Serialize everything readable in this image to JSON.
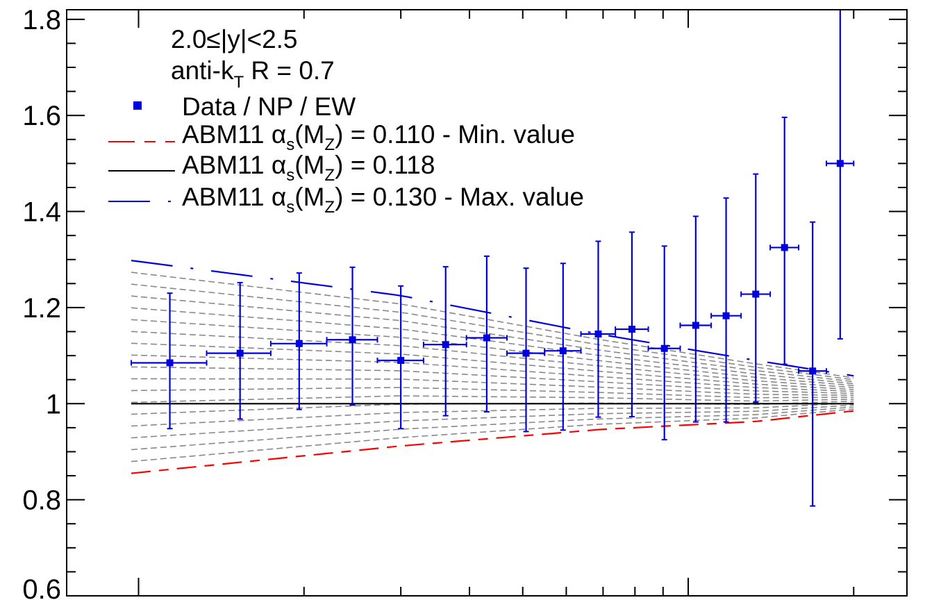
{
  "chart_data": {
    "type": "scatter",
    "title": "",
    "xlabel": "",
    "ylabel": "",
    "xscale": "log",
    "xlim": [
      74,
      2500
    ],
    "ylim": [
      0.6,
      1.82
    ],
    "yticks": [
      0.6,
      0.8,
      1,
      1.2,
      1.4,
      1.6,
      1.8
    ],
    "ytick_labels": [
      "0.6",
      "0.8",
      "1",
      "1.2",
      "1.4",
      "1.6",
      "1.8"
    ],
    "grid": false,
    "annotations": [
      "2.0≤|y|<2.5",
      "anti-k",
      "T",
      " R = 0.7"
    ],
    "legend": {
      "placement": "top-left",
      "entries": [
        {
          "label": "Data / NP / EW",
          "color": "#0000dd",
          "style": "marker"
        },
        {
          "label": "ABM11 ",
          "alpha": "α",
          "sub": "s",
          "paren": "(M",
          "sub2": "Z",
          "tail": ") = 0.110 - Min. value",
          "color": "#ff0000",
          "style": "dashed"
        },
        {
          "label": "ABM11 ",
          "alpha": "α",
          "sub": "s",
          "paren": "(M",
          "sub2": "Z",
          "tail": ") = 0.118",
          "color": "#000000",
          "style": "solid"
        },
        {
          "label": "ABM11 ",
          "alpha": "α",
          "sub": "s",
          "paren": "(M",
          "sub2": "Z",
          "tail": ") = 0.130 - Max. value",
          "color": "#0000dd",
          "style": "longdash"
        }
      ]
    },
    "series": [
      {
        "name": "Data / NP / EW",
        "color": "#0000dd",
        "points": [
          {
            "x": 114,
            "xlo": 97,
            "xhi": 133,
            "y": 1.085,
            "ylo": 0.948,
            "yhi": 1.23
          },
          {
            "x": 153,
            "xlo": 133,
            "xhi": 174,
            "y": 1.105,
            "ylo": 0.968,
            "yhi": 1.252
          },
          {
            "x": 196,
            "xlo": 174,
            "xhi": 220,
            "y": 1.125,
            "ylo": 0.988,
            "yhi": 1.272
          },
          {
            "x": 245,
            "xlo": 220,
            "xhi": 272,
            "y": 1.133,
            "ylo": 0.997,
            "yhi": 1.284
          },
          {
            "x": 300,
            "xlo": 272,
            "xhi": 330,
            "y": 1.09,
            "ylo": 0.948,
            "yhi": 1.245
          },
          {
            "x": 362,
            "xlo": 330,
            "xhi": 395,
            "y": 1.123,
            "ylo": 0.975,
            "yhi": 1.285
          },
          {
            "x": 430,
            "xlo": 395,
            "xhi": 468,
            "y": 1.137,
            "ylo": 0.983,
            "yhi": 1.307
          },
          {
            "x": 507,
            "xlo": 468,
            "xhi": 548,
            "y": 1.105,
            "ylo": 0.942,
            "yhi": 1.282
          },
          {
            "x": 592,
            "xlo": 548,
            "xhi": 638,
            "y": 1.11,
            "ylo": 0.945,
            "yhi": 1.292
          },
          {
            "x": 686,
            "xlo": 638,
            "xhi": 737,
            "y": 1.145,
            "ylo": 0.972,
            "yhi": 1.338
          },
          {
            "x": 790,
            "xlo": 737,
            "xhi": 846,
            "y": 1.155,
            "ylo": 0.973,
            "yhi": 1.357
          },
          {
            "x": 905,
            "xlo": 846,
            "xhi": 967,
            "y": 1.115,
            "ylo": 0.925,
            "yhi": 1.328
          },
          {
            "x": 1032,
            "xlo": 967,
            "xhi": 1101,
            "y": 1.163,
            "ylo": 0.962,
            "yhi": 1.39
          },
          {
            "x": 1172,
            "xlo": 1101,
            "xhi": 1248,
            "y": 1.183,
            "ylo": 0.962,
            "yhi": 1.428
          },
          {
            "x": 1327,
            "xlo": 1248,
            "xhi": 1410,
            "y": 1.228,
            "ylo": 1.003,
            "yhi": 1.478
          },
          {
            "x": 1497,
            "xlo": 1410,
            "xhi": 1588,
            "y": 1.325,
            "ylo": 1.082,
            "yhi": 1.596
          },
          {
            "x": 1684,
            "xlo": 1588,
            "xhi": 1784,
            "y": 1.068,
            "ylo": 0.787,
            "yhi": 1.378
          },
          {
            "x": 1890,
            "xlo": 1784,
            "xhi": 2000,
            "y": 1.5,
            "ylo": 1.135,
            "yhi": 1.82
          }
        ]
      },
      {
        "name": "ABM11 αs(MZ) = 0.110 - Min. value",
        "color": "#ff0000",
        "x": [
          97,
          300,
          686,
          1327,
          2000
        ],
        "y": [
          0.855,
          0.912,
          0.946,
          0.963,
          0.985
        ]
      },
      {
        "name": "ABM11 αs(MZ) = 0.118",
        "color": "#000000",
        "x": [
          97,
          2000
        ],
        "y": [
          1.0,
          1.0
        ]
      },
      {
        "name": "ABM11 αs(MZ) = 0.130 - Max. value",
        "color": "#0000dd",
        "x": [
          97,
          300,
          686,
          1327,
          2000
        ],
        "y": [
          1.298,
          1.225,
          1.145,
          1.09,
          1.058
        ]
      }
    ],
    "band": {
      "color": "#888888",
      "lines": 18,
      "x": [
        97,
        300,
        686,
        1327,
        2000
      ],
      "ymin": [
        0.855,
        0.912,
        0.946,
        0.963,
        0.985
      ],
      "ymax": [
        1.298,
        1.225,
        1.145,
        1.09,
        1.058
      ]
    }
  }
}
